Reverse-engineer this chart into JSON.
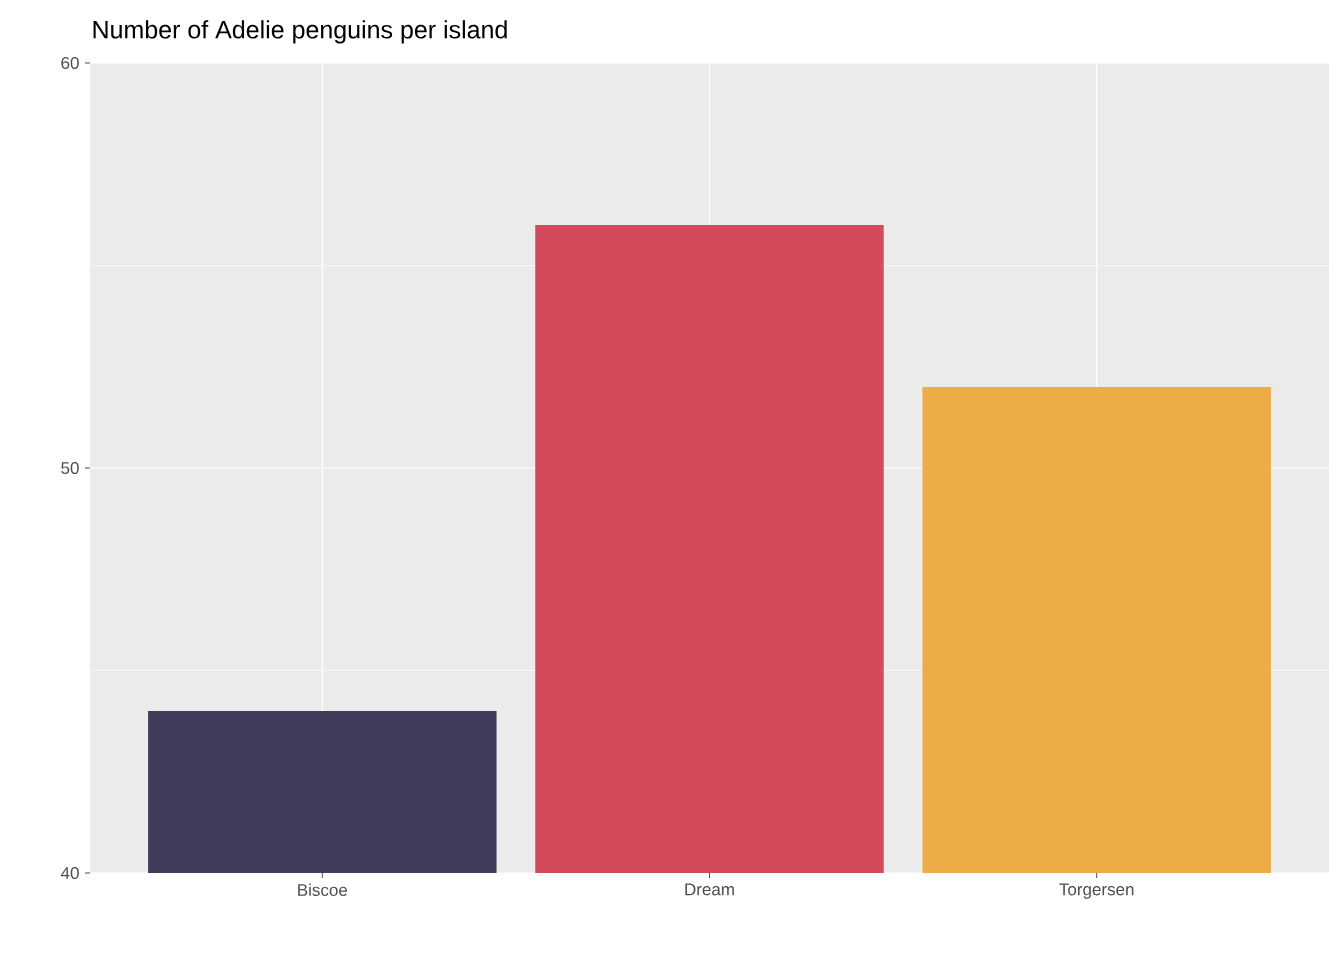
{
  "chart_data": {
    "type": "bar",
    "title": "Number of Adelie penguins per island",
    "categories": [
      "Biscoe",
      "Dream",
      "Torgersen"
    ],
    "values": [
      44,
      56,
      52
    ],
    "colors": [
      "#413c59",
      "#d34a5d",
      "#ecac48"
    ],
    "ylim": [
      40,
      60
    ],
    "yticks": [
      40,
      {
        "value": 45,
        "label": null
      },
      50,
      {
        "value": 55,
        "label": null
      },
      60
    ],
    "grid": true
  }
}
